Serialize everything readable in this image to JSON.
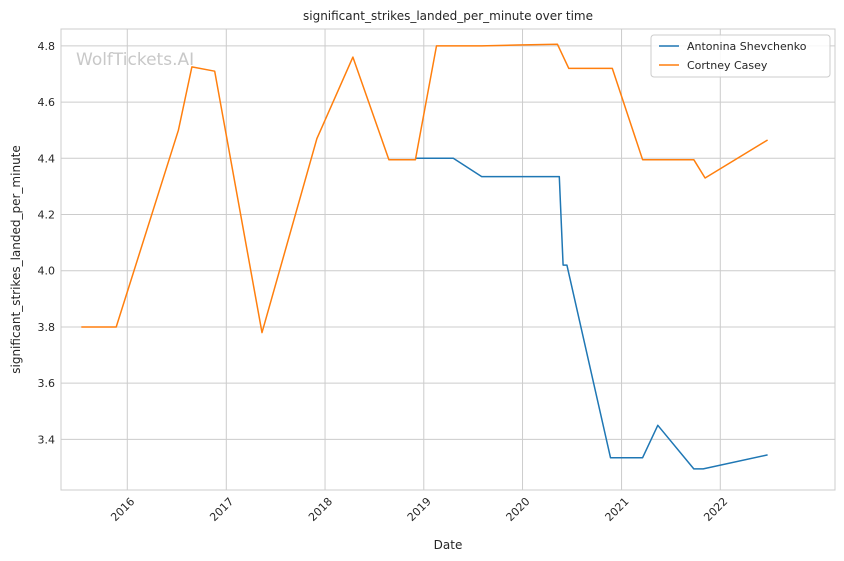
{
  "chart_data": {
    "type": "line",
    "title": "significant_strikes_landed_per_minute over time",
    "xlabel": "Date",
    "ylabel": "significant_strikes_landed_per_minute",
    "x_type": "date",
    "xlim": [
      "2015-05-01",
      "2023-03-01"
    ],
    "ylim": [
      3.22,
      4.86
    ],
    "grid": true,
    "legend_position": "top-right",
    "watermark": "WolfTickets.AI",
    "x_ticks": [
      {
        "date": "2016-01-01",
        "label": "2016"
      },
      {
        "date": "2017-01-01",
        "label": "2017"
      },
      {
        "date": "2018-01-01",
        "label": "2018"
      },
      {
        "date": "2019-01-01",
        "label": "2019"
      },
      {
        "date": "2020-01-01",
        "label": "2020"
      },
      {
        "date": "2021-01-01",
        "label": "2021"
      },
      {
        "date": "2022-01-01",
        "label": "2022"
      }
    ],
    "y_ticks": [
      3.4,
      3.6,
      3.8,
      4.0,
      4.2,
      4.4,
      4.6,
      4.8
    ],
    "y_tick_labels": [
      "3.4",
      "3.6",
      "3.8",
      "4.0",
      "4.2",
      "4.4",
      "4.6",
      "4.8"
    ],
    "series": [
      {
        "name": "Antonina Shevchenko",
        "color": "#1f77b4",
        "points": [
          {
            "x": "2018-12-01",
            "y": 4.4
          },
          {
            "x": "2019-04-20",
            "y": 4.4
          },
          {
            "x": "2019-08-03",
            "y": 4.335
          },
          {
            "x": "2020-05-16",
            "y": 4.335
          },
          {
            "x": "2020-05-30",
            "y": 4.02
          },
          {
            "x": "2020-06-13",
            "y": 4.02
          },
          {
            "x": "2020-11-21",
            "y": 3.335
          },
          {
            "x": "2021-03-20",
            "y": 3.335
          },
          {
            "x": "2021-05-15",
            "y": 3.45
          },
          {
            "x": "2021-09-25",
            "y": 3.295
          },
          {
            "x": "2021-10-30",
            "y": 3.295
          },
          {
            "x": "2022-06-25",
            "y": 3.345
          }
        ]
      },
      {
        "name": "Cortney Casey",
        "color": "#ff7f0e",
        "points": [
          {
            "x": "2015-07-15",
            "y": 3.8
          },
          {
            "x": "2015-11-21",
            "y": 3.8
          },
          {
            "x": "2016-07-08",
            "y": 4.5
          },
          {
            "x": "2016-08-27",
            "y": 4.725
          },
          {
            "x": "2016-11-19",
            "y": 4.71
          },
          {
            "x": "2017-05-13",
            "y": 3.78
          },
          {
            "x": "2017-12-02",
            "y": 4.47
          },
          {
            "x": "2018-04-14",
            "y": 4.76
          },
          {
            "x": "2018-08-25",
            "y": 4.395
          },
          {
            "x": "2018-12-01",
            "y": 4.395
          },
          {
            "x": "2019-02-17",
            "y": 4.8
          },
          {
            "x": "2019-08-03",
            "y": 4.8
          },
          {
            "x": "2019-12-14",
            "y": 4.803
          },
          {
            "x": "2020-05-09",
            "y": 4.806
          },
          {
            "x": "2020-06-20",
            "y": 4.72
          },
          {
            "x": "2020-11-28",
            "y": 4.72
          },
          {
            "x": "2021-03-20",
            "y": 4.395
          },
          {
            "x": "2021-09-25",
            "y": 4.395
          },
          {
            "x": "2021-11-06",
            "y": 4.33
          },
          {
            "x": "2022-06-25",
            "y": 4.465
          }
        ]
      }
    ]
  }
}
